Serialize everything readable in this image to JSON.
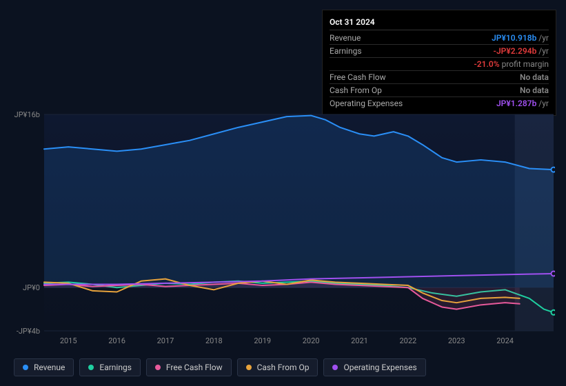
{
  "tooltip": {
    "date": "Oct 31 2024",
    "rows": [
      {
        "label": "Revenue",
        "value": "JP¥10.918b",
        "suffix": " /yr",
        "color": "#2a8ff7",
        "note": ""
      },
      {
        "label": "Earnings",
        "value": "-JP¥2.294b",
        "suffix": " /yr",
        "color": "#e23b3b",
        "note": "-21.0% profit margin",
        "note_color": "#e23b3b",
        "note_suffix_color": "#888"
      },
      {
        "label": "Free Cash Flow",
        "value": "No data",
        "suffix": "",
        "color": "#888",
        "note": ""
      },
      {
        "label": "Cash From Op",
        "value": "No data",
        "suffix": "",
        "color": "#888",
        "note": ""
      },
      {
        "label": "Operating Expenses",
        "value": "JP¥1.287b",
        "suffix": " /yr",
        "color": "#a050f0",
        "note": ""
      }
    ]
  },
  "chart": {
    "y_ticks": [
      {
        "label": "JP¥16b",
        "v": 16
      },
      {
        "label": "JP¥0",
        "v": 0
      },
      {
        "label": "-JP¥4b",
        "v": -4
      }
    ],
    "y_min": -4,
    "y_max": 16,
    "x_min": 2014.5,
    "x_max": 2025.0,
    "x_ticks": [
      "2015",
      "2016",
      "2017",
      "2018",
      "2019",
      "2020",
      "2021",
      "2022",
      "2023",
      "2024"
    ],
    "highlight_from": 2024.2,
    "series": [
      {
        "name": "Revenue",
        "color": "#2a8ff7",
        "fill": "rgba(42,143,247,0.15)",
        "width": 2,
        "data": [
          [
            2014.5,
            12.8
          ],
          [
            2015,
            13.0
          ],
          [
            2015.5,
            12.8
          ],
          [
            2016,
            12.6
          ],
          [
            2016.5,
            12.8
          ],
          [
            2017,
            13.2
          ],
          [
            2017.5,
            13.6
          ],
          [
            2018,
            14.2
          ],
          [
            2018.5,
            14.8
          ],
          [
            2019,
            15.3
          ],
          [
            2019.5,
            15.8
          ],
          [
            2020,
            15.9
          ],
          [
            2020.3,
            15.5
          ],
          [
            2020.6,
            14.8
          ],
          [
            2021,
            14.2
          ],
          [
            2021.3,
            14.0
          ],
          [
            2021.7,
            14.4
          ],
          [
            2022,
            14.0
          ],
          [
            2022.3,
            13.2
          ],
          [
            2022.7,
            12.0
          ],
          [
            2023,
            11.6
          ],
          [
            2023.5,
            11.8
          ],
          [
            2024,
            11.6
          ],
          [
            2024.5,
            11.0
          ],
          [
            2025,
            10.9
          ]
        ]
      },
      {
        "name": "Earnings",
        "color": "#1fcfa0",
        "fill": "none",
        "width": 2,
        "data": [
          [
            2014.5,
            0.4
          ],
          [
            2015,
            0.5
          ],
          [
            2015.5,
            0.3
          ],
          [
            2016,
            0.0
          ],
          [
            2016.5,
            0.2
          ],
          [
            2017,
            0.4
          ],
          [
            2017.5,
            0.3
          ],
          [
            2018,
            0.5
          ],
          [
            2018.5,
            0.6
          ],
          [
            2019,
            0.4
          ],
          [
            2019.5,
            0.5
          ],
          [
            2020,
            0.6
          ],
          [
            2020.5,
            0.4
          ],
          [
            2021,
            0.3
          ],
          [
            2021.5,
            0.2
          ],
          [
            2022,
            0.0
          ],
          [
            2022.5,
            -0.5
          ],
          [
            2023,
            -0.8
          ],
          [
            2023.5,
            -0.4
          ],
          [
            2024,
            -0.2
          ],
          [
            2024.5,
            -1.0
          ],
          [
            2024.8,
            -2.0
          ],
          [
            2025,
            -2.3
          ]
        ]
      },
      {
        "name": "Free Cash Flow",
        "color": "#e85a9b",
        "fill": "rgba(232,90,155,0.12)",
        "width": 2,
        "data": [
          [
            2014.5,
            0.2
          ],
          [
            2015,
            0.3
          ],
          [
            2015.5,
            0.1
          ],
          [
            2016,
            0.2
          ],
          [
            2016.5,
            0.3
          ],
          [
            2017,
            0.1
          ],
          [
            2017.5,
            0.2
          ],
          [
            2018,
            0.3
          ],
          [
            2018.5,
            0.4
          ],
          [
            2019,
            0.2
          ],
          [
            2019.5,
            0.3
          ],
          [
            2020,
            0.5
          ],
          [
            2020.5,
            0.3
          ],
          [
            2021,
            0.2
          ],
          [
            2021.5,
            0.1
          ],
          [
            2022,
            0.0
          ],
          [
            2022.3,
            -1.0
          ],
          [
            2022.7,
            -1.8
          ],
          [
            2023,
            -2.0
          ],
          [
            2023.5,
            -1.6
          ],
          [
            2024,
            -1.4
          ],
          [
            2024.3,
            -1.5
          ]
        ]
      },
      {
        "name": "Cash From Op",
        "color": "#e8a33c",
        "fill": "none",
        "width": 2,
        "data": [
          [
            2014.5,
            0.5
          ],
          [
            2015,
            0.4
          ],
          [
            2015.5,
            -0.3
          ],
          [
            2016,
            -0.4
          ],
          [
            2016.5,
            0.6
          ],
          [
            2017,
            0.8
          ],
          [
            2017.5,
            0.2
          ],
          [
            2018,
            -0.2
          ],
          [
            2018.5,
            0.4
          ],
          [
            2019,
            0.6
          ],
          [
            2019.5,
            0.3
          ],
          [
            2020,
            0.7
          ],
          [
            2020.5,
            0.5
          ],
          [
            2021,
            0.4
          ],
          [
            2021.5,
            0.3
          ],
          [
            2022,
            0.2
          ],
          [
            2022.3,
            -0.5
          ],
          [
            2022.7,
            -1.2
          ],
          [
            2023,
            -1.4
          ],
          [
            2023.5,
            -1.0
          ],
          [
            2024,
            -0.9
          ],
          [
            2024.3,
            -1.0
          ]
        ]
      },
      {
        "name": "Operating Expenses",
        "color": "#a050f0",
        "fill": "none",
        "width": 2,
        "data": [
          [
            2014.5,
            0.3
          ],
          [
            2015,
            0.3
          ],
          [
            2016,
            0.3
          ],
          [
            2017,
            0.4
          ],
          [
            2018,
            0.5
          ],
          [
            2019,
            0.6
          ],
          [
            2020,
            0.8
          ],
          [
            2021,
            0.9
          ],
          [
            2022,
            1.0
          ],
          [
            2023,
            1.1
          ],
          [
            2024,
            1.2
          ],
          [
            2025,
            1.29
          ]
        ]
      }
    ]
  },
  "legend": [
    {
      "label": "Revenue",
      "color": "#2a8ff7"
    },
    {
      "label": "Earnings",
      "color": "#1fcfa0"
    },
    {
      "label": "Free Cash Flow",
      "color": "#e85a9b"
    },
    {
      "label": "Cash From Op",
      "color": "#e8a33c"
    },
    {
      "label": "Operating Expenses",
      "color": "#a050f0"
    }
  ],
  "colors": {
    "bg": "#0b1220",
    "grid": "#1a2438",
    "highlight_band": "rgba(80,100,140,0.18)"
  }
}
